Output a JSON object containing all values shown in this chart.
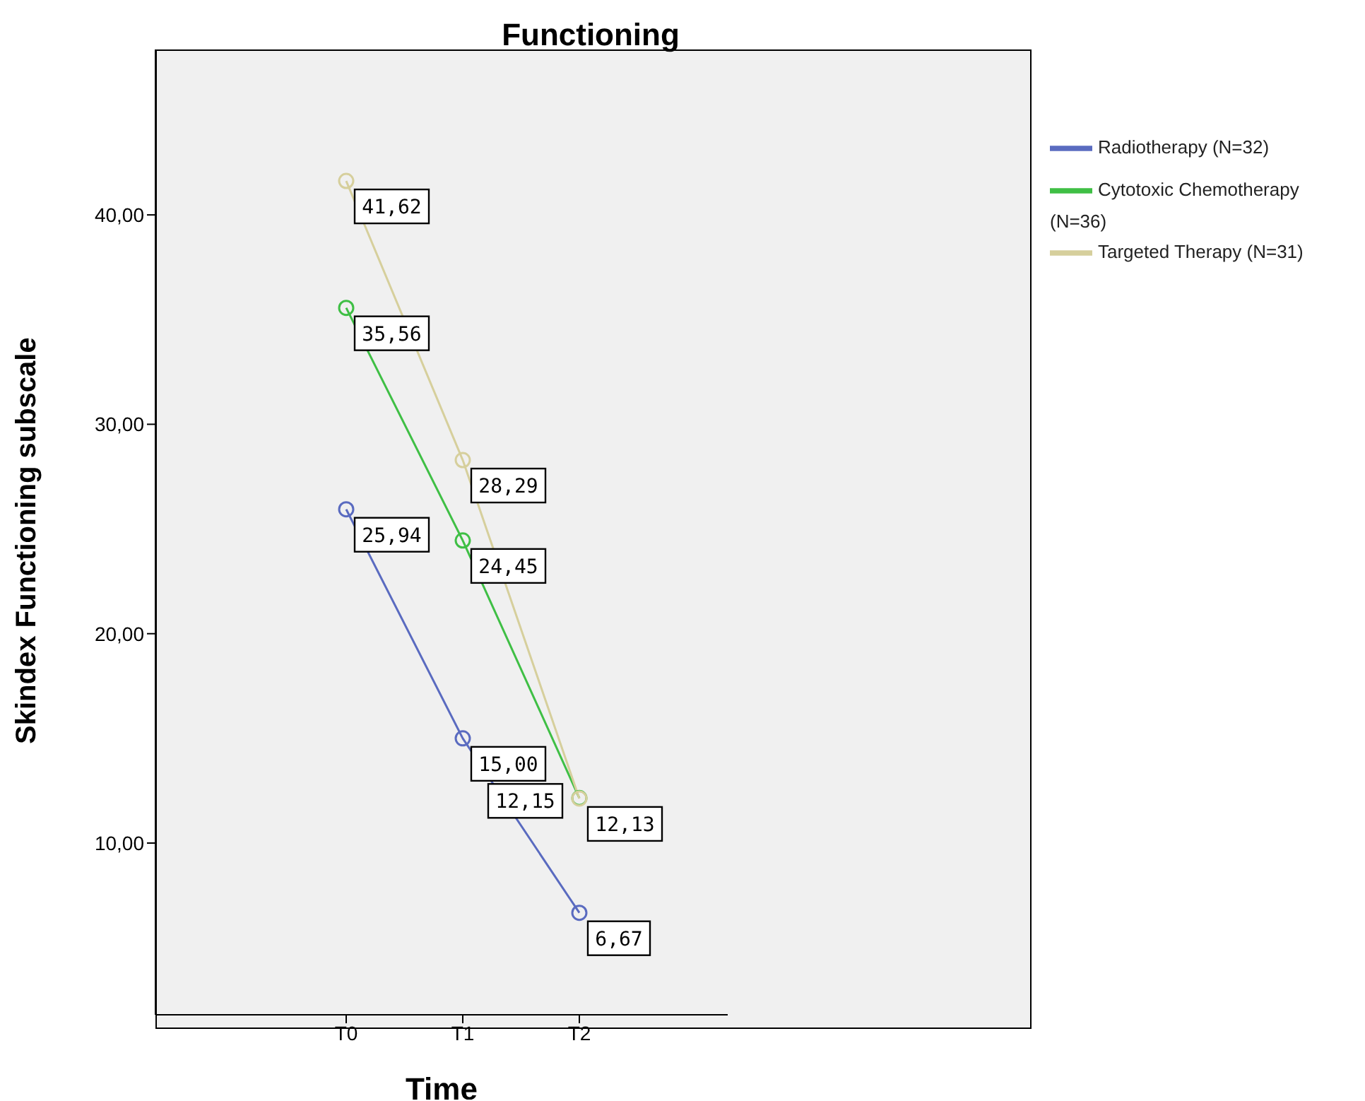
{
  "chart_data": {
    "type": "line",
    "title": "Functioning",
    "xlabel": "Time",
    "ylabel": "Skindex Functioning subscale",
    "categories": [
      "T0",
      "T1",
      "T2"
    ],
    "series": [
      {
        "name": "Radiotherapy (N=32)",
        "color": "#5a6bc0",
        "values": [
          25.94,
          15.0,
          6.67
        ],
        "value_labels": [
          "25,94",
          "15,00",
          "6,67"
        ]
      },
      {
        "name": "Cytotoxic Chemotherapy (N=36)",
        "color": "#3fbf45",
        "values": [
          35.56,
          24.45,
          12.15
        ],
        "value_labels": [
          "35,56",
          "24,45",
          "12,15"
        ]
      },
      {
        "name": "Targeted Therapy (N=31)",
        "color": "#d6cf9c",
        "values": [
          41.62,
          28.29,
          12.13
        ],
        "value_labels": [
          "41,62",
          "28,29",
          "12,13"
        ]
      }
    ],
    "ylim": [
      1.8,
      47.9
    ],
    "yticks": [
      {
        "value": 10,
        "label": "10,00"
      },
      {
        "value": 20,
        "label": "20,00"
      },
      {
        "value": 30,
        "label": "30,00"
      },
      {
        "value": 40,
        "label": "40,00"
      }
    ],
    "grid": false,
    "legend": "top right",
    "marker": "circle",
    "line_style": "solid"
  }
}
